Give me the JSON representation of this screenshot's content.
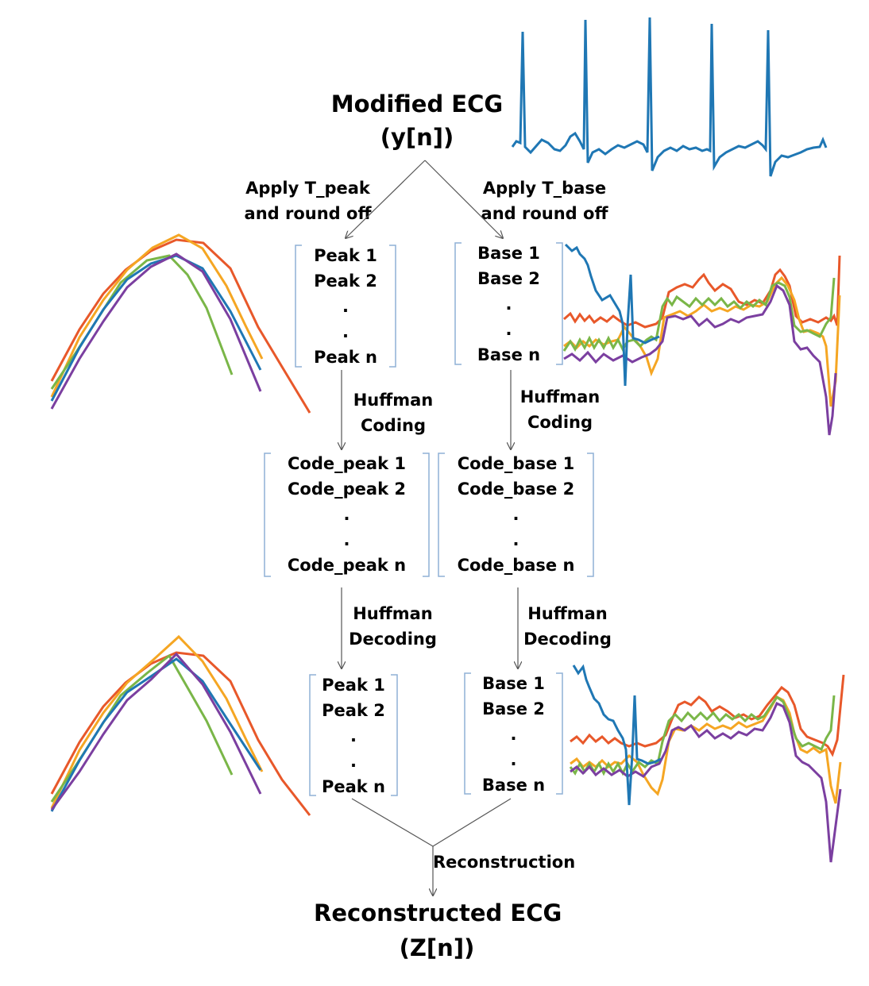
{
  "top": {
    "title": "Modified ECG",
    "signal": "(y[n])"
  },
  "bottom": {
    "title": "Reconstructed ECG",
    "signal": "(Z[n])"
  },
  "steps": {
    "apply_peak": [
      "Apply T_peak",
      "and round off"
    ],
    "apply_base": [
      "Apply T_base",
      "and round off"
    ],
    "coding_peak": [
      "Huffman",
      "Coding"
    ],
    "coding_base": [
      "Huffman",
      "Coding"
    ],
    "decoding_peak": [
      "Huffman",
      "Decoding"
    ],
    "decoding_base": [
      "Huffman",
      "Decoding"
    ],
    "reconstruction": "Reconstruction"
  },
  "boxes": {
    "peak": [
      "Peak 1",
      "Peak 2",
      ".",
      ".",
      "Peak n"
    ],
    "base": [
      "Base 1",
      "Base 2",
      ".",
      ".",
      "Base n"
    ],
    "code_peak": [
      "Code_peak 1",
      "Code_peak 2",
      ".",
      ".",
      "Code_peak n"
    ],
    "code_base": [
      "Code_base 1",
      "Code_base 2",
      ".",
      ".",
      "Code_base n"
    ],
    "peak_decoded": [
      "Peak 1",
      "Peak 2",
      ".",
      ".",
      "Peak n"
    ],
    "base_decoded": [
      "Base 1",
      "Base 2",
      ".",
      ".",
      "Base n"
    ]
  },
  "colors": {
    "blue": "#1f77b4",
    "orange": "#e8582a",
    "yellow": "#f5a623",
    "purple": "#7b3fa0",
    "green": "#7ab648",
    "bracket": "#8fb0d6",
    "arrow": "#555555"
  }
}
